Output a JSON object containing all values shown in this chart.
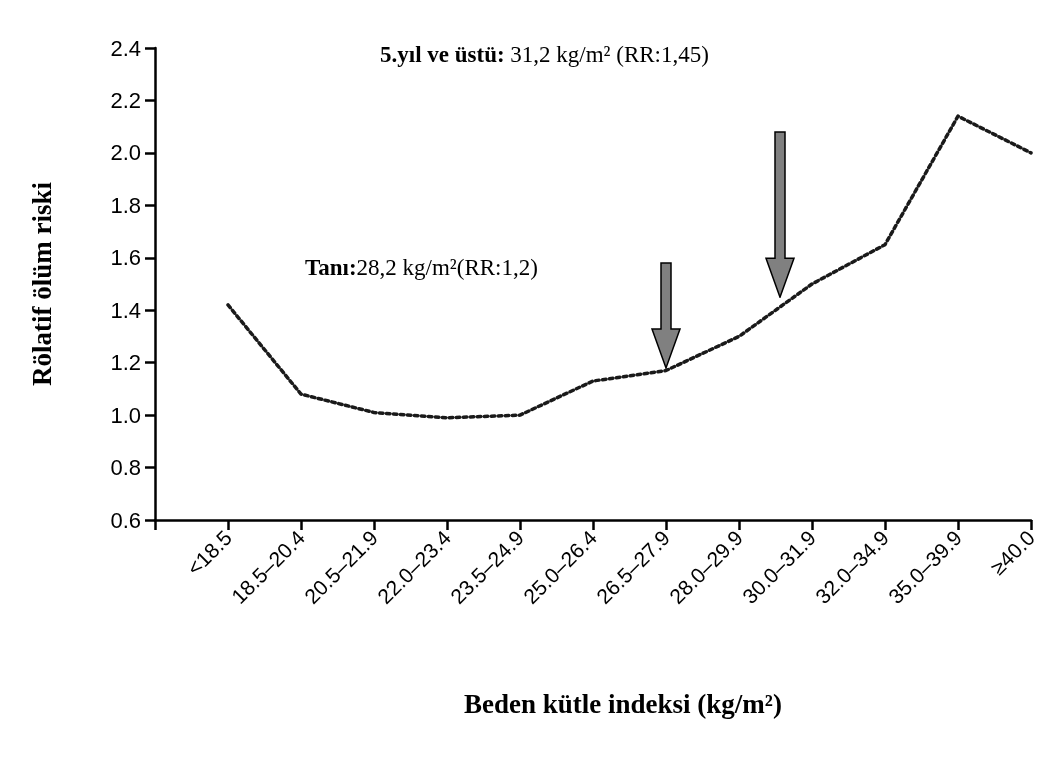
{
  "chart_data": {
    "type": "line",
    "xlabel": "Beden kütle indeksi (kg/m²)",
    "ylabel": "Rölatif ölüm riski",
    "categories": [
      "<18.5",
      "18.5–20.4",
      "20.5–21.9",
      "22.0–23.4",
      "23.5–24.9",
      "25.0–26.4",
      "26.5–27.9",
      "28.0–29.9",
      "30.0–31.9",
      "32.0–34.9",
      "35.0–39.9",
      "≥40.0"
    ],
    "series": [
      {
        "color": "#1a1a1a",
        "values": [
          1.42,
          1.08,
          1.01,
          0.99,
          1.0,
          1.13,
          1.17,
          1.3,
          1.5,
          1.65,
          2.14,
          2.0
        ]
      }
    ],
    "line_style": "dotted",
    "marker": "none",
    "ylim": [
      0.6,
      2.4
    ],
    "yticks": [
      0.6,
      0.8,
      {
        "value": 1,
        "label": "1.0"
      },
      1.2,
      1.4,
      1.6,
      1.8,
      {
        "value": 2,
        "label": "2.0"
      },
      2.2,
      2.4
    ],
    "grid": false,
    "annotations": [
      "Tanı:28,2 kg/m²(RR:1,2)",
      "5.yıl ve üstü: 31,2 kg/m² (RR:1,45)"
    ]
  }
}
